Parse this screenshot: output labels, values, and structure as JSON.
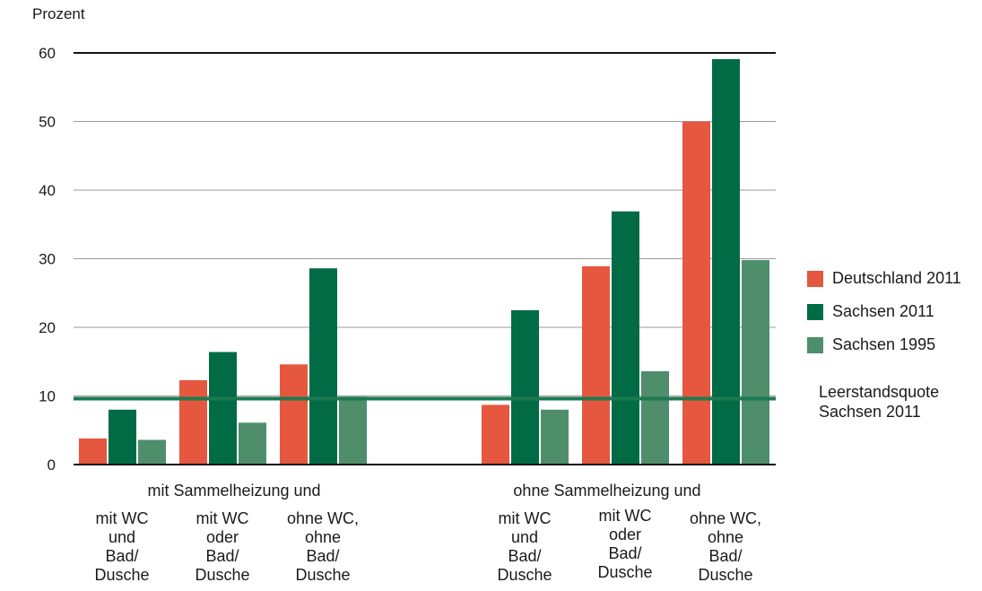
{
  "chart_data": {
    "type": "bar",
    "ylabel": "Prozent",
    "ylim": [
      0,
      60
    ],
    "yticks": [
      0,
      10,
      20,
      30,
      40,
      50,
      60
    ],
    "groups": [
      {
        "label": "mit Sammelheizung und",
        "categories": [
          [
            "mit WC",
            "und",
            "Bad/",
            "Dusche"
          ],
          [
            "mit WC",
            "oder",
            "Bad/",
            "Dusche"
          ],
          [
            "ohne WC,",
            "ohne",
            "Bad/",
            "Dusche"
          ]
        ]
      },
      {
        "label": "ohne Sammelheizung und",
        "categories": [
          [
            "mit WC",
            "und",
            "Bad/",
            "Dusche"
          ],
          [
            "mit WC",
            "oder",
            "Bad/",
            "Dusche"
          ],
          [
            "ohne WC,",
            "ohne",
            "Bad/",
            "Dusche"
          ]
        ]
      }
    ],
    "series": [
      {
        "name": "Deutschland 2011",
        "color": "#e5573e",
        "values": [
          3.8,
          12.3,
          14.6,
          8.7,
          28.9,
          50.0
        ]
      },
      {
        "name": "Sachsen 2011",
        "color": "#006b45",
        "values": [
          8.0,
          16.4,
          28.6,
          22.5,
          36.9,
          59.1
        ]
      },
      {
        "name": "Sachsen 1995",
        "color": "#4e8e6b",
        "values": [
          3.6,
          6.1,
          9.9,
          8.0,
          13.6,
          29.8
        ]
      }
    ],
    "reference_line": {
      "value": 9.6,
      "color": "#1b7a52",
      "label": [
        "Leerstandsquote",
        "Sachsen 2011"
      ]
    },
    "grid": true,
    "legend_position": "right"
  }
}
